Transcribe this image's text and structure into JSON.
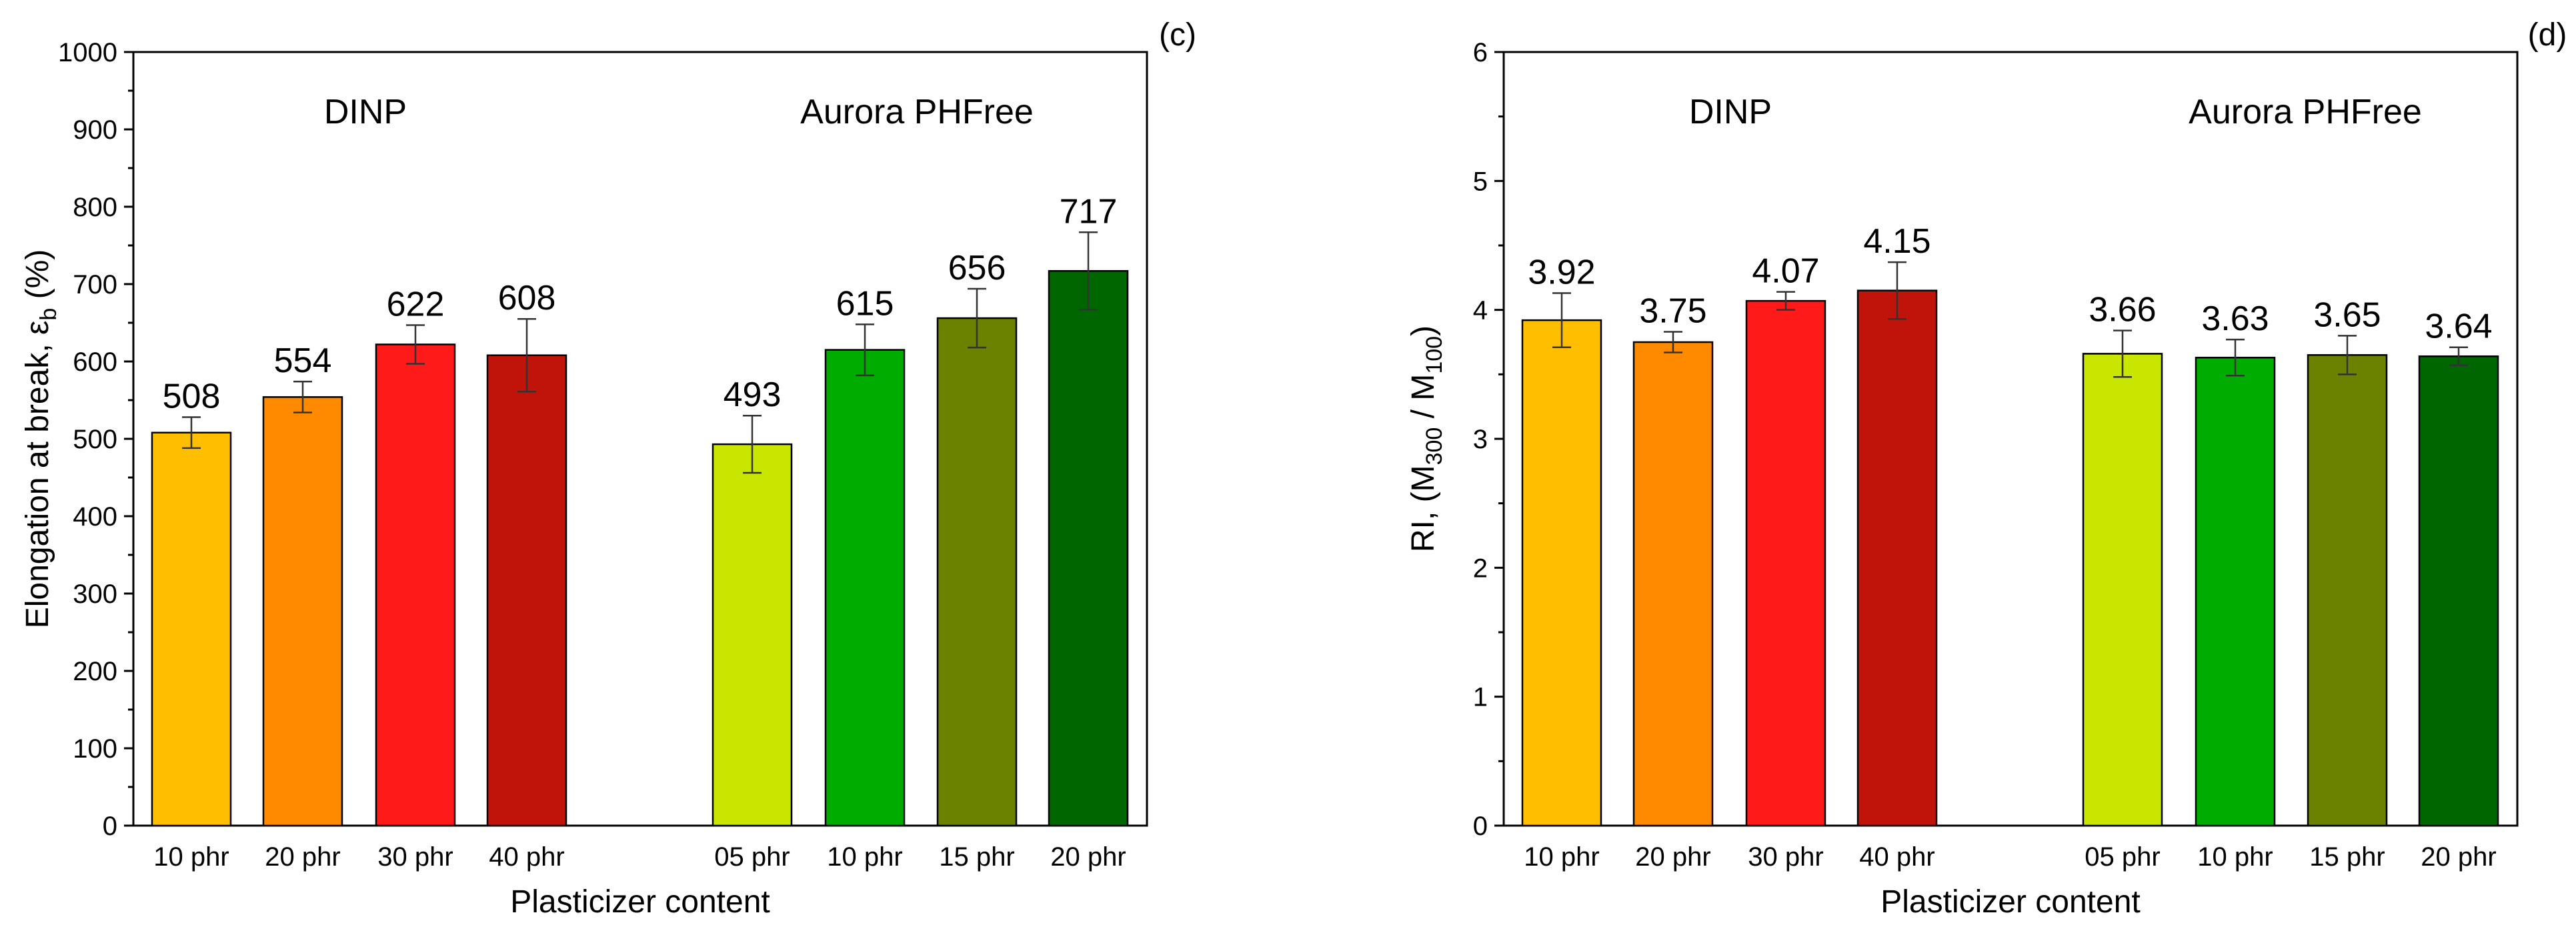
{
  "chart_data": [
    {
      "type": "bar",
      "panel_label": "(c)",
      "group_labels": [
        "DINP",
        "Aurora PHFree"
      ],
      "categories": [
        "10 phr",
        "20 phr",
        "30 phr",
        "40 phr",
        "05 phr",
        "10 phr",
        "15 phr",
        "20 phr"
      ],
      "groups": [
        0,
        0,
        0,
        0,
        1,
        1,
        1,
        1
      ],
      "values": [
        508,
        554,
        622,
        608,
        493,
        615,
        656,
        717
      ],
      "value_labels": [
        "508",
        "554",
        "622",
        "608",
        "493",
        "615",
        "656",
        "717"
      ],
      "errors": [
        20,
        20,
        25,
        47,
        37,
        33,
        38,
        50
      ],
      "colors": [
        "#FFBF00",
        "#FF8A00",
        "#FF1A1A",
        "#C0140A",
        "#C8E600",
        "#00AC00",
        "#6A8200",
        "#006600"
      ],
      "xlabel": "Plasticizer content",
      "ylabel": {
        "main": "Elongation at break, ε",
        "sub": "b",
        "tail": " (%)"
      },
      "ylim": [
        0,
        1000
      ],
      "yticks": [
        0,
        100,
        200,
        300,
        400,
        500,
        600,
        700,
        800,
        900,
        1000
      ],
      "grid": false
    },
    {
      "type": "bar",
      "panel_label": "(d)",
      "group_labels": [
        "DINP",
        "Aurora PHFree"
      ],
      "categories": [
        "10 phr",
        "20 phr",
        "30 phr",
        "40 phr",
        "05 phr",
        "10 phr",
        "15 phr",
        "20 phr"
      ],
      "groups": [
        0,
        0,
        0,
        0,
        1,
        1,
        1,
        1
      ],
      "values": [
        3.92,
        3.75,
        4.07,
        4.15,
        3.66,
        3.63,
        3.65,
        3.64
      ],
      "value_labels": [
        "3.92",
        "3.75",
        "4.07",
        "4.15",
        "3.66",
        "3.63",
        "3.65",
        "3.64"
      ],
      "errors": [
        0.21,
        0.08,
        0.07,
        0.22,
        0.18,
        0.14,
        0.15,
        0.07
      ],
      "colors": [
        "#FFBF00",
        "#FF8A00",
        "#FF1A1A",
        "#C0140A",
        "#C8E600",
        "#00AC00",
        "#6A8200",
        "#006600"
      ],
      "xlabel": "Plasticizer content",
      "ylabel": {
        "prefix": "RI, (M",
        "sub1": "300",
        "mid": " / M",
        "sub2": "100",
        "suffix": ")"
      },
      "ylim": [
        0,
        6
      ],
      "yticks": [
        0,
        1,
        2,
        3,
        4,
        5,
        6
      ],
      "grid": false
    }
  ]
}
